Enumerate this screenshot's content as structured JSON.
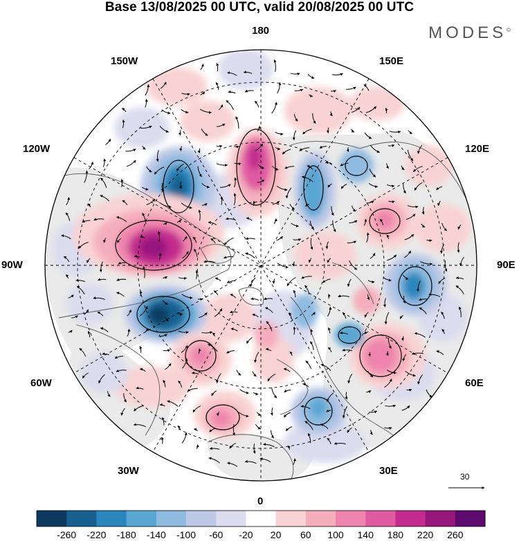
{
  "title": "Base 13/08/2025 00 UTC, valid 20/08/2025 00 UTC",
  "brand": "MODES",
  "brand_mark": "©",
  "longitude_labels": {
    "top": "180",
    "top_left": "150W",
    "top_right": "150E",
    "upper_left": "120W",
    "upper_right": "120E",
    "left": "90W",
    "right": "90E",
    "lower_left": "60W",
    "lower_right": "60E",
    "bottom_left": "30W",
    "bottom_right": "30E",
    "bottom": "0"
  },
  "reference_vector_label": "30",
  "colorbar": {
    "labels": [
      "-260",
      "-220",
      "-180",
      "-140",
      "-100",
      "-60",
      "-20",
      "20",
      "60",
      "100",
      "140",
      "180",
      "220",
      "260"
    ],
    "colors": [
      "#0d3a5e",
      "#17608f",
      "#2a86bd",
      "#5aa6d3",
      "#8fbbe0",
      "#bcc8e6",
      "#dcdcef",
      "#ffffff",
      "#f9d3d3",
      "#f5aebb",
      "#ee84ad",
      "#e05aa2",
      "#c22c8e",
      "#96177c",
      "#5c0a6e"
    ]
  },
  "colors": {
    "land": "#eaeaea",
    "negative_strong": "#17608f",
    "positive_strong": "#c22c8e"
  }
}
